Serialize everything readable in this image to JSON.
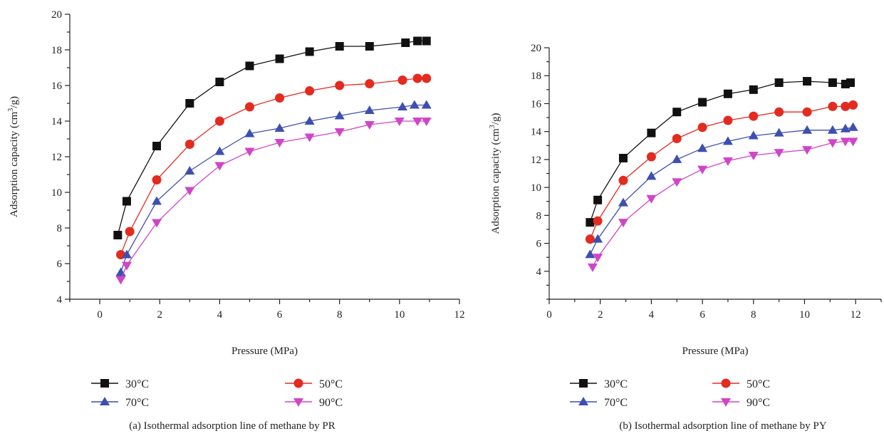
{
  "chart_data": [
    {
      "type": "line",
      "panel_label": "(a)",
      "caption": "(a) Isothermal adsorption line of methane by PR",
      "xlabel": "Pressure (MPa)",
      "ylabel_main": "Adsorption capacity (cm",
      "ylabel_sup": "3",
      "ylabel_tail": "/g)",
      "xlim": [
        -1,
        12
      ],
      "ylim": [
        4,
        20
      ],
      "xticks": [
        0,
        2,
        4,
        6,
        8,
        10,
        12
      ],
      "yticks": [
        4,
        6,
        8,
        10,
        12,
        14,
        16,
        18,
        20
      ],
      "legend_position": "bottom",
      "series": [
        {
          "name": "30°C",
          "marker": "square",
          "color": "#111111",
          "x": [
            0.6,
            0.9,
            1.9,
            3.0,
            4.0,
            5.0,
            6.0,
            7.0,
            8.0,
            9.0,
            10.2,
            10.6,
            10.9
          ],
          "y": [
            7.6,
            9.5,
            12.6,
            15.0,
            16.2,
            17.1,
            17.5,
            17.9,
            18.2,
            18.2,
            18.4,
            18.5,
            18.5
          ]
        },
        {
          "name": "50°C",
          "marker": "circle",
          "color": "#e32b20",
          "x": [
            0.7,
            1.0,
            1.9,
            3.0,
            4.0,
            5.0,
            6.0,
            7.0,
            8.0,
            9.0,
            10.1,
            10.6,
            10.9
          ],
          "y": [
            6.5,
            7.8,
            10.7,
            12.7,
            14.0,
            14.8,
            15.3,
            15.7,
            16.0,
            16.1,
            16.3,
            16.4,
            16.4
          ]
        },
        {
          "name": "70°C",
          "marker": "triangle-up",
          "color": "#3d4fb0",
          "x": [
            0.7,
            0.9,
            1.9,
            3.0,
            4.0,
            5.0,
            6.0,
            7.0,
            8.0,
            9.0,
            10.1,
            10.5,
            10.9
          ],
          "y": [
            5.5,
            6.5,
            9.5,
            11.2,
            12.3,
            13.3,
            13.6,
            14.0,
            14.3,
            14.6,
            14.8,
            14.9,
            14.9
          ]
        },
        {
          "name": "90°C",
          "marker": "triangle-down",
          "color": "#d045c8",
          "x": [
            0.7,
            0.9,
            1.9,
            3.0,
            4.0,
            5.0,
            6.0,
            7.0,
            8.0,
            9.0,
            10.0,
            10.6,
            10.9
          ],
          "y": [
            5.1,
            5.9,
            8.3,
            10.1,
            11.5,
            12.3,
            12.8,
            13.1,
            13.4,
            13.8,
            14.0,
            14.0,
            14.0
          ]
        }
      ]
    },
    {
      "type": "line",
      "panel_label": "(b)",
      "caption": "(b) Isothermal adsorption line of methane by PY",
      "xlabel": "Pressure (MPa)",
      "ylabel_main": "Adsorption capacity (cm",
      "ylabel_sup": "3",
      "ylabel_tail": "/g)",
      "xlim": [
        0,
        13
      ],
      "ylim": [
        2,
        20
      ],
      "xticks": [
        0,
        2,
        4,
        6,
        8,
        10,
        12
      ],
      "yticks": [
        4,
        6,
        8,
        10,
        12,
        14,
        16,
        18,
        20
      ],
      "legend_position": "bottom",
      "series": [
        {
          "name": "30°C",
          "marker": "square",
          "color": "#111111",
          "x": [
            1.6,
            1.9,
            2.9,
            4.0,
            5.0,
            6.0,
            7.0,
            8.0,
            9.0,
            10.1,
            11.1,
            11.6,
            11.8
          ],
          "y": [
            7.5,
            9.1,
            12.1,
            13.9,
            15.4,
            16.1,
            16.7,
            17.0,
            17.5,
            17.6,
            17.5,
            17.4,
            17.5
          ]
        },
        {
          "name": "50°C",
          "marker": "circle",
          "color": "#e32b20",
          "x": [
            1.6,
            1.9,
            2.9,
            4.0,
            5.0,
            6.0,
            7.0,
            8.0,
            9.0,
            10.1,
            11.1,
            11.6,
            11.9
          ],
          "y": [
            6.3,
            7.6,
            10.5,
            12.2,
            13.5,
            14.3,
            14.8,
            15.1,
            15.4,
            15.4,
            15.8,
            15.8,
            15.9
          ]
        },
        {
          "name": "70°C",
          "marker": "triangle-up",
          "color": "#3d4fb0",
          "x": [
            1.6,
            1.9,
            2.9,
            4.0,
            5.0,
            6.0,
            7.0,
            8.0,
            9.0,
            10.1,
            11.1,
            11.6,
            11.9
          ],
          "y": [
            5.2,
            6.3,
            8.9,
            10.8,
            12.0,
            12.8,
            13.3,
            13.7,
            13.9,
            14.1,
            14.1,
            14.2,
            14.3
          ]
        },
        {
          "name": "90°C",
          "marker": "triangle-down",
          "color": "#d045c8",
          "x": [
            1.7,
            1.9,
            2.9,
            4.0,
            5.0,
            6.0,
            7.0,
            8.0,
            9.0,
            10.1,
            11.1,
            11.6,
            11.9
          ],
          "y": [
            4.3,
            5.0,
            7.5,
            9.2,
            10.4,
            11.3,
            11.9,
            12.3,
            12.5,
            12.7,
            13.2,
            13.3,
            13.3
          ]
        }
      ]
    }
  ]
}
